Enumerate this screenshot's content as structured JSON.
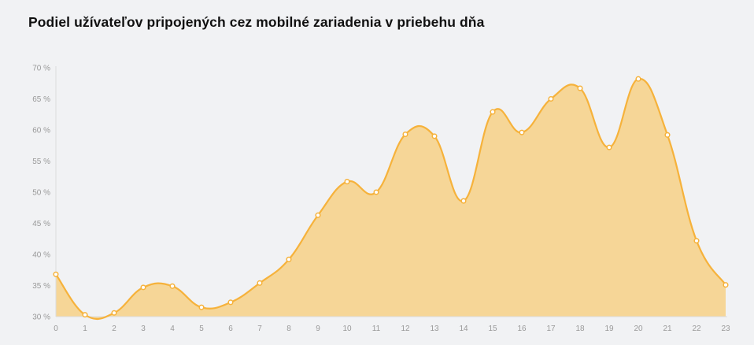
{
  "chart_data": {
    "type": "area",
    "title": "Podiel užívateľov pripojených cez mobilné zariadenia v priebehu dňa",
    "xlabel": "",
    "ylabel": "",
    "x": [
      0,
      1,
      2,
      3,
      4,
      5,
      6,
      7,
      8,
      9,
      10,
      11,
      12,
      13,
      14,
      15,
      16,
      17,
      18,
      19,
      20,
      21,
      22,
      23
    ],
    "x_tick_labels": [
      "0",
      "1",
      "2",
      "3",
      "4",
      "5",
      "6",
      "7",
      "8",
      "9",
      "10",
      "11",
      "12",
      "13",
      "14",
      "15",
      "16",
      "17",
      "18",
      "19",
      "20",
      "21",
      "22",
      "23"
    ],
    "values": [
      36.8,
      30.3,
      30.6,
      34.7,
      34.9,
      31.5,
      32.3,
      35.4,
      39.2,
      46.3,
      51.7,
      50.0,
      59.3,
      59.0,
      48.6,
      62.9,
      59.6,
      65.0,
      66.7,
      57.2,
      68.2,
      59.2,
      42.2,
      35.1
    ],
    "ylim": [
      30,
      70
    ],
    "y_ticks": [
      30,
      35,
      40,
      45,
      50,
      55,
      60,
      65,
      70
    ],
    "y_tick_labels": [
      "30 %",
      "35 %",
      "40 %",
      "45 %",
      "50 %",
      "55 %",
      "60 %",
      "65 %",
      "70 %"
    ],
    "grid": false,
    "legend": "none",
    "colors": {
      "line": "#f6b23b",
      "fill": "#f6d697",
      "marker_fill": "#ffffff",
      "axis": "#dcdcdc",
      "background": "#f1f2f4"
    }
  }
}
